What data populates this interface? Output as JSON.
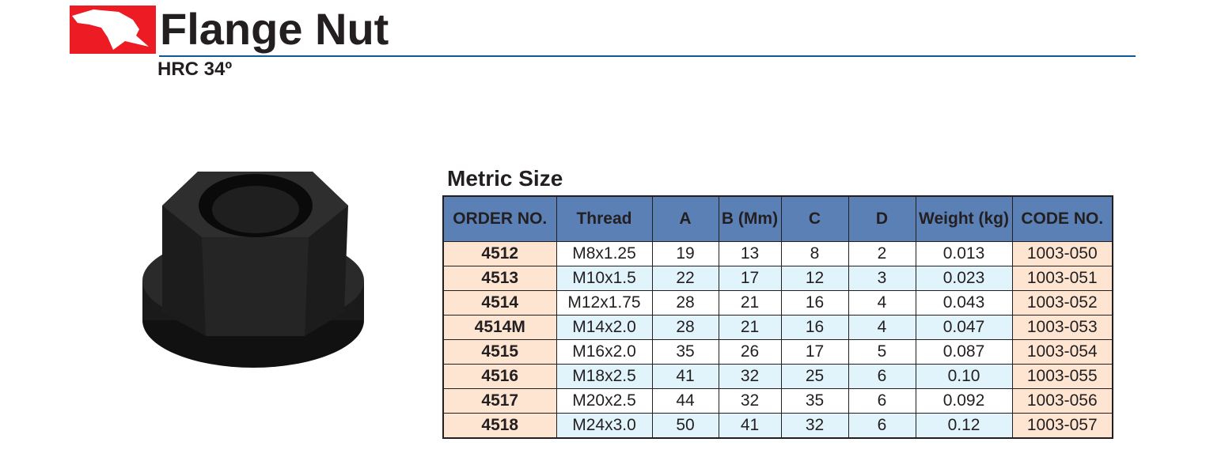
{
  "header": {
    "title": "Flange Nut",
    "subtitle": "HRC 34º",
    "logo_color": "#ed1c24",
    "rule_color": "#0a5a9c"
  },
  "table": {
    "title": "Metric Size",
    "columns": [
      "ORDER NO.",
      "Thread",
      "A",
      "B (Mm)",
      "C",
      "D",
      "Weight (kg)",
      "CODE NO."
    ],
    "rows": [
      [
        "4512",
        "M8x1.25",
        "19",
        "13",
        "8",
        "2",
        "0.013",
        "1003-050"
      ],
      [
        "4513",
        "M10x1.5",
        "22",
        "17",
        "12",
        "3",
        "0.023",
        "1003-051"
      ],
      [
        "4514",
        "M12x1.75",
        "28",
        "21",
        "16",
        "4",
        "0.043",
        "1003-052"
      ],
      [
        "4514M",
        "M14x2.0",
        "28",
        "21",
        "16",
        "4",
        "0.047",
        "1003-053"
      ],
      [
        "4515",
        "M16x2.0",
        "35",
        "26",
        "17",
        "5",
        "0.087",
        "1003-054"
      ],
      [
        "4516",
        "M18x2.5",
        "41",
        "32",
        "25",
        "6",
        "0.10",
        "1003-055"
      ],
      [
        "4517",
        "M20x2.5",
        "44",
        "32",
        "35",
        "6",
        "0.092",
        "1003-056"
      ],
      [
        "4518",
        "M24x3.0",
        "50",
        "41",
        "32",
        "6",
        "0.12",
        "1003-057"
      ]
    ],
    "header_color": "#5b80b6",
    "order_color": "#fde5d2",
    "alt_row_color": "#e1f3fb"
  }
}
